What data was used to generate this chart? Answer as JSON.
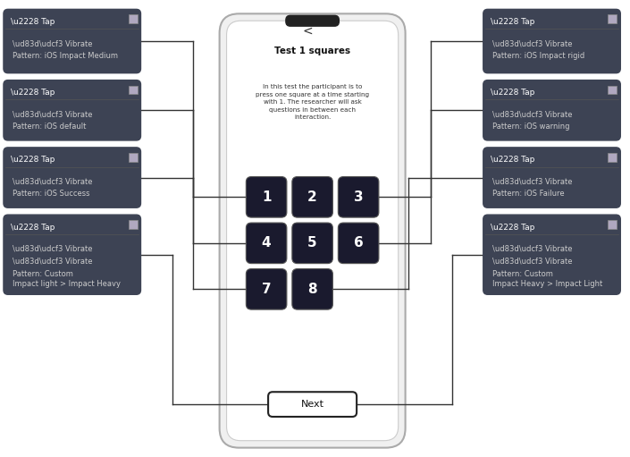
{
  "title": "Test 1 squares",
  "subtitle": "In this test the participant is to\npress one square at a time starting\nwith 1. The researcher will ask\nquestions in between each\ninteraction.",
  "bg_color": "#ffffff",
  "panel_color": "#3d4354",
  "panel_text_color": "#ffffff",
  "phone_bg": "#f5f5f5",
  "phone_border": "#cccccc",
  "square_color": "#1a1a2e",
  "square_text_color": "#ffffff",
  "next_button_bg": "#ffffff",
  "next_button_border": "#1a1a2e",
  "left_panels": [
    {
      "lines": [
        "\\u2228 Tap",
        "\\ud83d\\udcf3 Vibrate",
        "Pattern: iOS Impact Medium"
      ],
      "row": 0
    },
    {
      "lines": [
        "\\u2228 Tap",
        "\\ud83d\\udcf3 Vibrate",
        "Pattern: iOS default"
      ],
      "row": 1
    },
    {
      "lines": [
        "\\u2228 Tap",
        "\\ud83d\\udcf3 Vibrate",
        "Pattern: iOS Success"
      ],
      "row": 2
    },
    {
      "lines": [
        "\\u2228 Tap",
        "\\ud83d\\udcf3 Vibrate",
        "\\ud83d\\udcf3 Vibrate",
        "Pattern: Custom\nImpact light > Impact Heavy"
      ],
      "row": 3
    }
  ],
  "right_panels": [
    {
      "lines": [
        "\\u2228 Tap",
        "\\ud83d\\udcf3 Vibrate",
        "Pattern: iOS Impact rigid"
      ],
      "row": 0
    },
    {
      "lines": [
        "\\u2228 Tap",
        "\\ud83d\\udcf3 Vibrate",
        "Pattern: iOS warning"
      ],
      "row": 1
    },
    {
      "lines": [
        "\\u2228 Tap",
        "\\ud83d\\udcf3 Vibrate",
        "Pattern: iOS Failure"
      ],
      "row": 2
    },
    {
      "lines": [
        "\\u2228 Tap",
        "\\ud83d\\udcf3 Vibrate",
        "\\ud83d\\udcf3 Vibrate",
        "Pattern: Custom\nImpact Heavy > Impact Light"
      ],
      "row": 3
    }
  ],
  "squares": [
    {
      "num": "1",
      "col": 0,
      "row": 0
    },
    {
      "num": "2",
      "col": 1,
      "row": 0
    },
    {
      "num": "3",
      "col": 2,
      "row": 0
    },
    {
      "num": "4",
      "col": 0,
      "row": 1
    },
    {
      "num": "5",
      "col": 1,
      "row": 1
    },
    {
      "num": "6",
      "col": 2,
      "row": 1
    },
    {
      "num": "7",
      "col": 0,
      "row": 2
    },
    {
      "num": "8",
      "col": 1,
      "row": 2
    }
  ]
}
